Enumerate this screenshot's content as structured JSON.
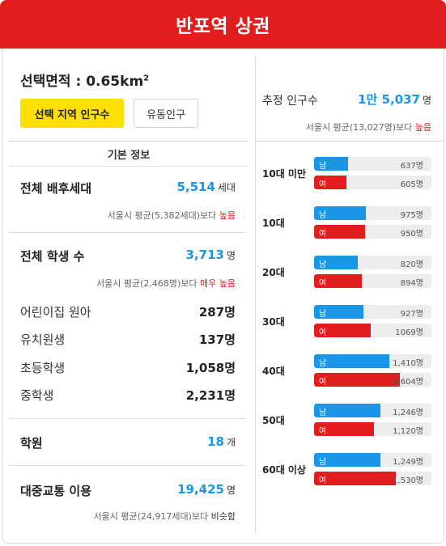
{
  "header": {
    "title": "반포역 상권"
  },
  "area": {
    "label": "선택면적 : 0.65km",
    "sup": "2"
  },
  "buttons": {
    "primary": "선택 지역 인구수",
    "secondary": "유동인구"
  },
  "basic_info": {
    "title": "기본 정보",
    "households": {
      "label": "전체 배후세대",
      "value": "5,514",
      "unit": "세대",
      "compare_prefix": "서울시 평균(5,382세대)보다 ",
      "compare_level": "높음"
    },
    "students": {
      "label": "전체 학생 수",
      "value": "3,713",
      "unit": "명",
      "compare_prefix": "서울시 평균(2,468명)보다 ",
      "compare_level": "매우 높음"
    },
    "student_breakdown": [
      {
        "label": "어린이집 원아",
        "value": "287명"
      },
      {
        "label": "유치원생",
        "value": "137명"
      },
      {
        "label": "초등학생",
        "value": "1,058명"
      },
      {
        "label": "중학생",
        "value": "2,231명"
      }
    ],
    "academies": {
      "label": "학원",
      "value": "18",
      "unit": "개"
    },
    "transit": {
      "label": "대중교통 이용",
      "value": "19,425",
      "unit": "명",
      "compare_prefix": "서울시 평균(24,917세대)보다 ",
      "compare_level": "비슷함"
    }
  },
  "estimate": {
    "label": "추정 인구수",
    "value": "1만 5,037",
    "unit": "명",
    "compare_prefix": "서울시 평균(13,027명)보다 ",
    "compare_level": "높음"
  },
  "age_groups": {
    "male_tag": "남",
    "female_tag": "여",
    "scale_max": 2200,
    "colors": {
      "male": "#1a96e6",
      "female": "#e21d1d"
    },
    "rows": [
      {
        "label": "10대 미만",
        "male": 637,
        "male_text": "637명",
        "female": 605,
        "female_text": "605명"
      },
      {
        "label": "10대",
        "male": 975,
        "male_text": "975명",
        "female": 950,
        "female_text": "950명"
      },
      {
        "label": "20대",
        "male": 820,
        "male_text": "820명",
        "female": 894,
        "female_text": "894명"
      },
      {
        "label": "30대",
        "male": 927,
        "male_text": "927명",
        "female": 1069,
        "female_text": "1069명"
      },
      {
        "label": "40대",
        "male": 1410,
        "male_text": "1,410명",
        "female": 1604,
        "female_text": "1,604명"
      },
      {
        "label": "50대",
        "male": 1246,
        "male_text": "1,246명",
        "female": 1120,
        "female_text": "1,120명"
      },
      {
        "label": "60대 이상",
        "male": 1249,
        "male_text": "1,249명",
        "female": 1530,
        "female_text": "1,530명"
      }
    ]
  }
}
